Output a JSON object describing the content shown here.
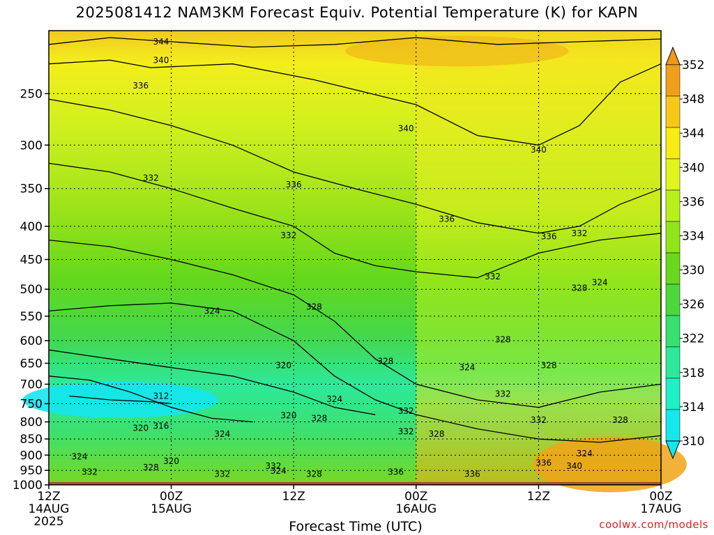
{
  "title": "2025081412 NAM3KM Forecast Equiv. Potential Temperature (K) for KAPN",
  "credit": "coolwx.com/models",
  "chart_data": {
    "type": "heatmap",
    "title": "2025081412 NAM3KM Forecast Equiv. Potential Temperature (K) for KAPN",
    "xlabel": "Forecast Time (UTC)",
    "ylabel": "",
    "y_axis": "pressure (hPa), inverted, log-spaced",
    "ylim": [
      1000,
      200
    ],
    "y_ticks": [
      1000,
      950,
      900,
      850,
      800,
      750,
      700,
      650,
      600,
      550,
      500,
      450,
      400,
      350,
      300,
      250
    ],
    "x_ticks": [
      {
        "hour": 0,
        "label": [
          "12Z",
          "14AUG",
          "2025"
        ]
      },
      {
        "hour": 12,
        "label": [
          "00Z",
          "15AUG"
        ]
      },
      {
        "hour": 24,
        "label": [
          "12Z"
        ]
      },
      {
        "hour": 36,
        "label": [
          "00Z",
          "16AUG"
        ]
      },
      {
        "hour": 48,
        "label": [
          "12Z"
        ]
      },
      {
        "hour": 60,
        "label": [
          "00Z",
          "17AUG"
        ]
      }
    ],
    "xlim": [
      0,
      60
    ],
    "grid": true,
    "colorbar": {
      "labels": [
        310,
        314,
        318,
        322,
        326,
        330,
        334,
        336,
        340,
        344,
        348,
        352
      ],
      "colors": [
        "#13e8ec",
        "#1ef0c8",
        "#2ee89a",
        "#38e070",
        "#4cd83a",
        "#6ad81c",
        "#90e41a",
        "#b8f01c",
        "#e0f41e",
        "#f8ec12",
        "#f8c818",
        "#f0a018"
      ]
    },
    "isolines": [
      {
        "level": 344,
        "points": [
          [
            0,
            210
          ],
          [
            6,
            205
          ],
          [
            12,
            208
          ],
          [
            20,
            212
          ],
          [
            28,
            210
          ],
          [
            36,
            205
          ],
          [
            44,
            210
          ],
          [
            52,
            208
          ],
          [
            60,
            206
          ]
        ]
      },
      {
        "level": 340,
        "points": [
          [
            0,
            225
          ],
          [
            6,
            222
          ],
          [
            10,
            228
          ],
          [
            18,
            225
          ],
          [
            26,
            238
          ],
          [
            36,
            260
          ],
          [
            42,
            290
          ],
          [
            48,
            300
          ],
          [
            52,
            280
          ],
          [
            56,
            240
          ],
          [
            60,
            225
          ]
        ]
      },
      {
        "level": 336,
        "points": [
          [
            0,
            255
          ],
          [
            6,
            265
          ],
          [
            12,
            280
          ],
          [
            18,
            300
          ],
          [
            24,
            330
          ],
          [
            30,
            350
          ],
          [
            36,
            370
          ],
          [
            42,
            395
          ],
          [
            48,
            410
          ],
          [
            52,
            400
          ],
          [
            56,
            370
          ],
          [
            60,
            350
          ]
        ]
      },
      {
        "level": 332,
        "points": [
          [
            0,
            320
          ],
          [
            6,
            330
          ],
          [
            12,
            350
          ],
          [
            18,
            375
          ],
          [
            24,
            400
          ],
          [
            28,
            440
          ],
          [
            32,
            460
          ],
          [
            36,
            470
          ],
          [
            42,
            480
          ],
          [
            48,
            440
          ],
          [
            54,
            420
          ],
          [
            60,
            410
          ]
        ]
      },
      {
        "level": 328,
        "points": [
          [
            0,
            420
          ],
          [
            6,
            430
          ],
          [
            12,
            450
          ],
          [
            18,
            475
          ],
          [
            24,
            510
          ],
          [
            28,
            560
          ],
          [
            32,
            640
          ],
          [
            36,
            700
          ],
          [
            42,
            740
          ],
          [
            48,
            760
          ],
          [
            54,
            720
          ],
          [
            60,
            700
          ]
        ]
      },
      {
        "level": 324,
        "points": [
          [
            0,
            540
          ],
          [
            6,
            530
          ],
          [
            12,
            525
          ],
          [
            18,
            540
          ],
          [
            24,
            600
          ],
          [
            28,
            680
          ],
          [
            32,
            740
          ],
          [
            36,
            780
          ],
          [
            42,
            820
          ],
          [
            48,
            850
          ],
          [
            54,
            860
          ],
          [
            60,
            840
          ]
        ]
      },
      {
        "level": 320,
        "points": [
          [
            0,
            620
          ],
          [
            6,
            640
          ],
          [
            12,
            660
          ],
          [
            18,
            680
          ],
          [
            24,
            720
          ],
          [
            28,
            760
          ],
          [
            32,
            780
          ]
        ]
      },
      {
        "level": 316,
        "points": [
          [
            0,
            680
          ],
          [
            4,
            690
          ],
          [
            8,
            720
          ],
          [
            12,
            760
          ],
          [
            16,
            790
          ],
          [
            20,
            800
          ]
        ]
      },
      {
        "level": 312,
        "points": [
          [
            2,
            730
          ],
          [
            6,
            740
          ],
          [
            10,
            745
          ],
          [
            12,
            750
          ]
        ]
      }
    ],
    "contour_labels": [
      {
        "text": "344",
        "hour": 11.0,
        "hPa": 208
      },
      {
        "text": "340",
        "hour": 11.0,
        "hPa": 222
      },
      {
        "text": "336",
        "hour": 9.0,
        "hPa": 243
      },
      {
        "text": "340",
        "hour": 35.0,
        "hPa": 283
      },
      {
        "text": "340",
        "hour": 48.0,
        "hPa": 305
      },
      {
        "text": "332",
        "hour": 10.0,
        "hPa": 337
      },
      {
        "text": "336",
        "hour": 24.0,
        "hPa": 345
      },
      {
        "text": "332",
        "hour": 23.5,
        "hPa": 413
      },
      {
        "text": "336",
        "hour": 39.0,
        "hPa": 390
      },
      {
        "text": "336",
        "hour": 49.0,
        "hPa": 415
      },
      {
        "text": "332",
        "hour": 52.0,
        "hPa": 410
      },
      {
        "text": "332",
        "hour": 43.5,
        "hPa": 478
      },
      {
        "text": "328",
        "hour": 52.0,
        "hPa": 498
      },
      {
        "text": "324",
        "hour": 54.0,
        "hPa": 488
      },
      {
        "text": "324",
        "hour": 16.0,
        "hPa": 540
      },
      {
        "text": "328",
        "hour": 26.0,
        "hPa": 532
      },
      {
        "text": "328",
        "hour": 44.5,
        "hPa": 598
      },
      {
        "text": "328",
        "hour": 33.0,
        "hPa": 645
      },
      {
        "text": "324",
        "hour": 41.0,
        "hPa": 660
      },
      {
        "text": "328",
        "hour": 49.0,
        "hPa": 655
      },
      {
        "text": "320",
        "hour": 23.0,
        "hPa": 655
      },
      {
        "text": "332",
        "hour": 44.5,
        "hPa": 725
      },
      {
        "text": "312",
        "hour": 11.0,
        "hPa": 730
      },
      {
        "text": "324",
        "hour": 28.0,
        "hPa": 738
      },
      {
        "text": "332",
        "hour": 35.0,
        "hPa": 770
      },
      {
        "text": "320",
        "hour": 23.5,
        "hPa": 782
      },
      {
        "text": "328",
        "hour": 26.5,
        "hPa": 790
      },
      {
        "text": "332",
        "hour": 48.0,
        "hPa": 795
      },
      {
        "text": "328",
        "hour": 56.0,
        "hPa": 795
      },
      {
        "text": "316",
        "hour": 11.0,
        "hPa": 812
      },
      {
        "text": "320",
        "hour": 9.0,
        "hPa": 818
      },
      {
        "text": "324",
        "hour": 17.0,
        "hPa": 835
      },
      {
        "text": "332",
        "hour": 35.0,
        "hPa": 828
      },
      {
        "text": "328",
        "hour": 38.0,
        "hPa": 835
      },
      {
        "text": "324",
        "hour": 52.5,
        "hPa": 895
      },
      {
        "text": "324",
        "hour": 3.0,
        "hPa": 905
      },
      {
        "text": "320",
        "hour": 12.0,
        "hPa": 920
      },
      {
        "text": "328",
        "hour": 10.0,
        "hPa": 940
      },
      {
        "text": "332",
        "hour": 22.0,
        "hPa": 935
      },
      {
        "text": "336",
        "hour": 48.5,
        "hPa": 925
      },
      {
        "text": "340",
        "hour": 51.5,
        "hPa": 935
      },
      {
        "text": "332",
        "hour": 4.0,
        "hPa": 955
      },
      {
        "text": "332",
        "hour": 17.0,
        "hPa": 962
      },
      {
        "text": "324",
        "hour": 22.5,
        "hPa": 952
      },
      {
        "text": "328",
        "hour": 26.0,
        "hPa": 962
      },
      {
        "text": "336",
        "hour": 34.0,
        "hPa": 955
      },
      {
        "text": "336",
        "hour": 41.5,
        "hPa": 962
      }
    ]
  }
}
